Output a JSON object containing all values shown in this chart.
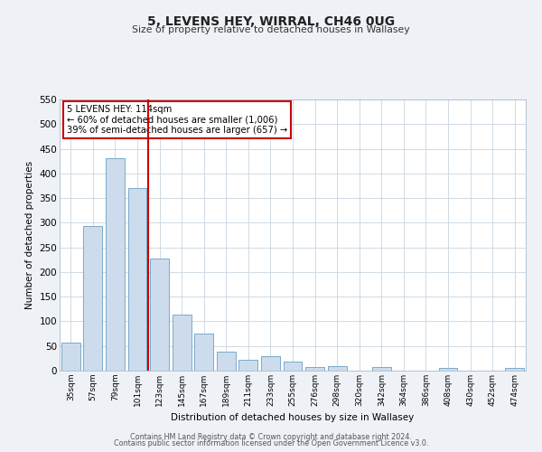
{
  "title": "5, LEVENS HEY, WIRRAL, CH46 0UG",
  "subtitle": "Size of property relative to detached houses in Wallasey",
  "xlabel": "Distribution of detached houses by size in Wallasey",
  "ylabel": "Number of detached properties",
  "categories": [
    "35sqm",
    "57sqm",
    "79sqm",
    "101sqm",
    "123sqm",
    "145sqm",
    "167sqm",
    "189sqm",
    "211sqm",
    "233sqm",
    "255sqm",
    "276sqm",
    "298sqm",
    "320sqm",
    "342sqm",
    "364sqm",
    "386sqm",
    "408sqm",
    "430sqm",
    "452sqm",
    "474sqm"
  ],
  "values": [
    57,
    293,
    430,
    370,
    228,
    113,
    76,
    38,
    22,
    29,
    18,
    8,
    10,
    0,
    8,
    0,
    0,
    6,
    0,
    0,
    5
  ],
  "bar_color": "#ccdcec",
  "bar_edge_color": "#7aaac8",
  "marker_label": "5 LEVENS HEY: 114sqm",
  "annotation_line1": "← 60% of detached houses are smaller (1,006)",
  "annotation_line2": "39% of semi-detached houses are larger (657) →",
  "annotation_box_color": "#ffffff",
  "annotation_box_edge": "#cc0000",
  "marker_line_color": "#cc0000",
  "ylim": [
    0,
    550
  ],
  "yticks": [
    0,
    50,
    100,
    150,
    200,
    250,
    300,
    350,
    400,
    450,
    500,
    550
  ],
  "footer1": "Contains HM Land Registry data © Crown copyright and database right 2024.",
  "footer2": "Contains public sector information licensed under the Open Government Licence v3.0.",
  "bg_color": "#eef2f7",
  "plot_bg_color": "#ffffff",
  "grid_color": "#c8d4e0"
}
